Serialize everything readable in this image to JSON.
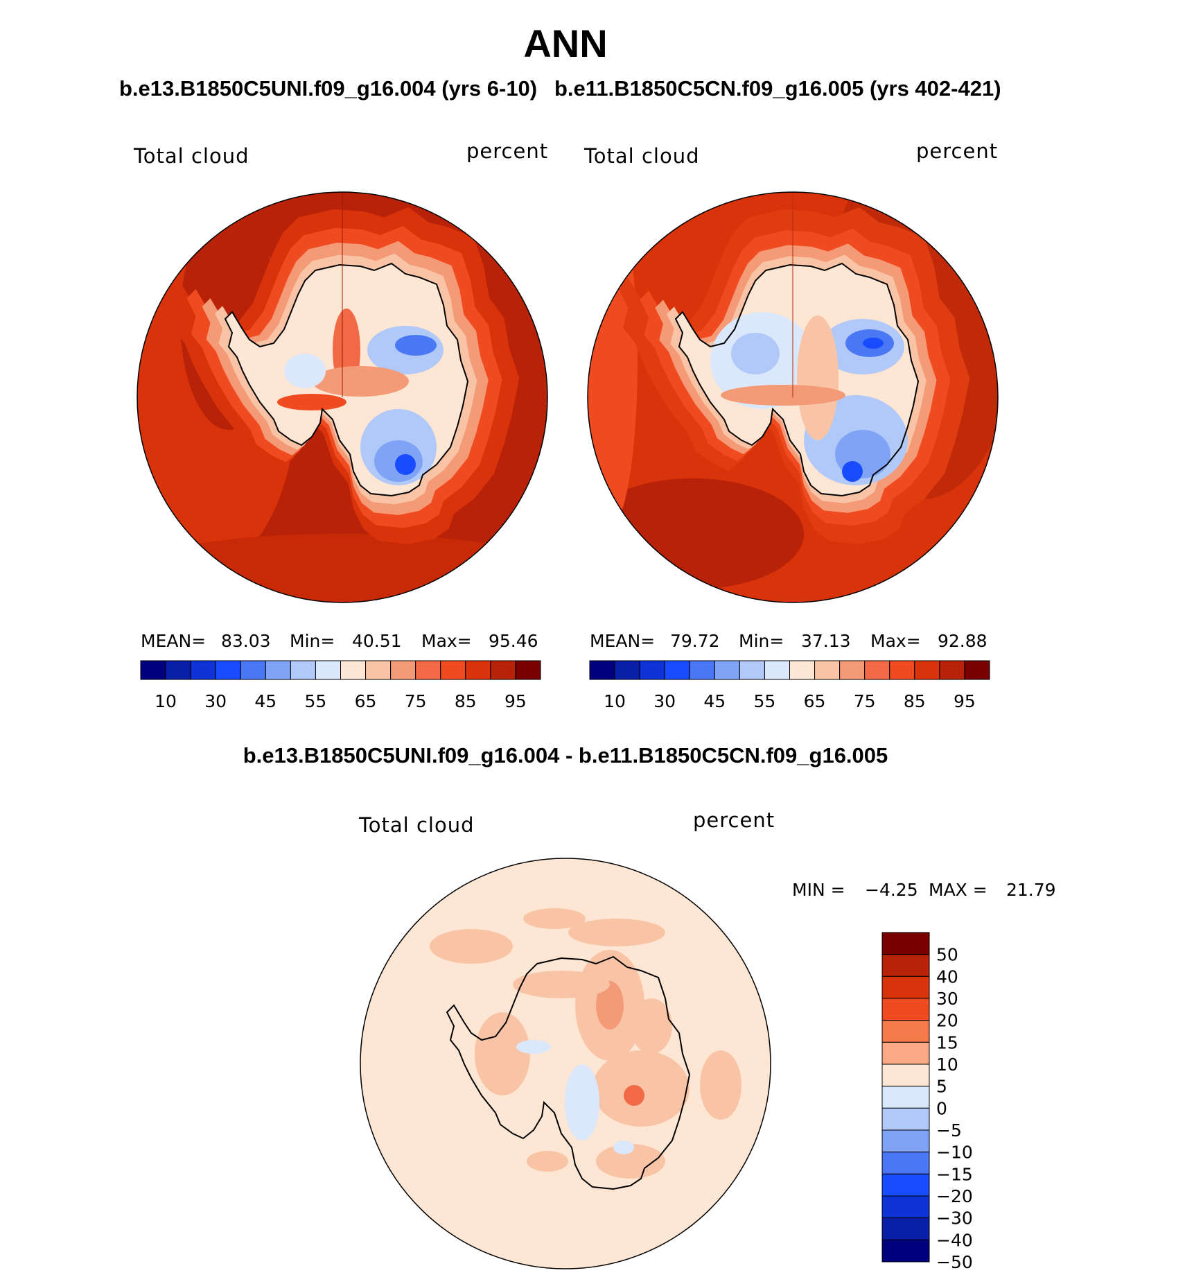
{
  "title": "ANN",
  "panels": [
    {
      "case_title": "b.e13.B1850C5UNI.f09_g16.004 (yrs 6-10)",
      "variable": "Total cloud",
      "units": "percent",
      "stats": {
        "mean_label": "MEAN=",
        "mean": "83.03",
        "min_label": "Min=",
        "min": "40.51",
        "max_label": "Max=",
        "max": "95.46"
      }
    },
    {
      "case_title": "b.e11.B1850C5CN.f09_g16.005 (yrs 402-421)",
      "variable": "Total cloud",
      "units": "percent",
      "stats": {
        "mean_label": "MEAN=",
        "mean": "79.72",
        "min_label": "Min=",
        "min": "37.13",
        "max_label": "Max=",
        "max": "92.88"
      }
    }
  ],
  "abs_colorbar": {
    "colors": [
      "#00007f",
      "#0a1fa8",
      "#0d33d6",
      "#1a4cff",
      "#4a78f5",
      "#7fa4f5",
      "#b0c9f8",
      "#dbe8fb",
      "#fde6d4",
      "#f9c4a6",
      "#f59a76",
      "#f26a45",
      "#f04a20",
      "#d8330a",
      "#b82208",
      "#7a0000"
    ],
    "labels": [
      "10",
      "30",
      "45",
      "55",
      "65",
      "75",
      "85",
      "95"
    ]
  },
  "diff": {
    "title": "b.e13.B1850C5UNI.f09_g16.004 - b.e11.B1850C5CN.f09_g16.005",
    "variable": "Total cloud",
    "units": "percent",
    "min_label": "MIN =",
    "min": "−4.25",
    "max_label": "MAX =",
    "max": "21.79",
    "colorbar": {
      "colors_top_to_bottom": [
        "#7a0000",
        "#b82208",
        "#d8330a",
        "#f04a20",
        "#f57a4c",
        "#f9aa85",
        "#fde6d4",
        "#dbe8fb",
        "#b0c9f8",
        "#7fa4f5",
        "#4a78f5",
        "#1a4cff",
        "#0d33d6",
        "#0a1fa8",
        "#00007f"
      ],
      "labels": [
        "50",
        "40",
        "30",
        "20",
        "15",
        "10",
        "5",
        "0",
        "−5",
        "−10",
        "−15",
        "−20",
        "−30",
        "−40",
        "−50"
      ]
    }
  }
}
